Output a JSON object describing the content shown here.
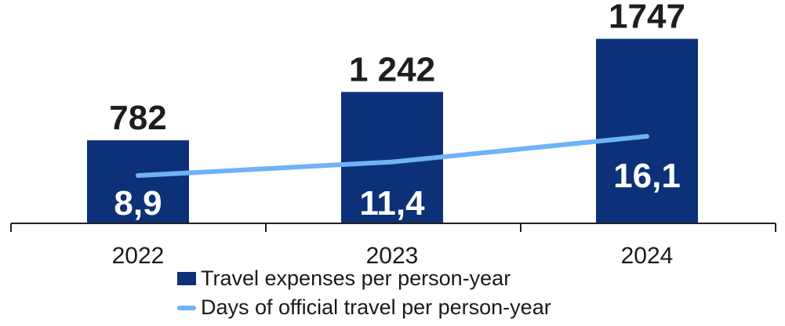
{
  "chart_data": {
    "type": "bar",
    "categories": [
      "2022",
      "2023",
      "2024"
    ],
    "series": [
      {
        "name": "Travel expenses per person-year",
        "type": "bar",
        "values": [
          782,
          1242,
          1747
        ],
        "labels": [
          "782",
          "1 242",
          "1747"
        ],
        "color": "#0d3178"
      },
      {
        "name": "Days of official travel per person-year",
        "type": "line",
        "values": [
          8.9,
          11.4,
          16.1
        ],
        "labels": [
          "8,9",
          "11,4",
          "16,1"
        ],
        "color": "#6fb3f7"
      }
    ],
    "ylim": [
      0,
      1800
    ],
    "grid": false,
    "legend_position": "bottom"
  }
}
